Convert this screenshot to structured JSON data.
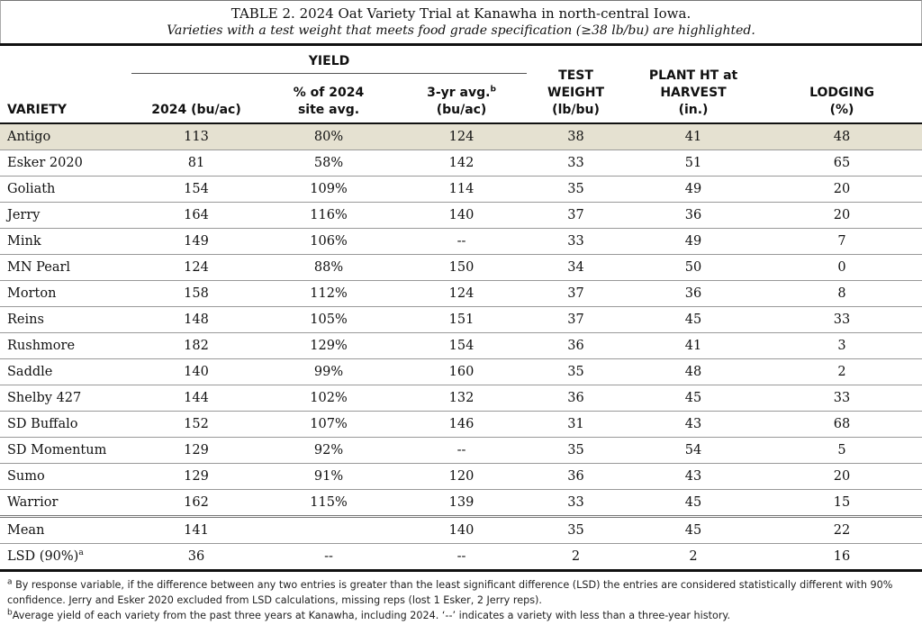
{
  "title": "TABLE 2. 2024 Oat Variety Trial at Kanawha in north-central Iowa.",
  "subtitle": "Varieties with a test weight that meets food grade specification (≥38 lb/bu) are highlighted.",
  "headers": {
    "variety": "VARIETY",
    "yield_group": "YIELD",
    "yield_2024": "2024 (bu/ac)",
    "pct_line1": "% of 2024",
    "pct_line2": "site avg.",
    "avg3_line1": "3-yr avg.",
    "avg3_sup": "b",
    "avg3_line2": "(bu/ac)",
    "tw_line1": "TEST",
    "tw_line2": "WEIGHT",
    "tw_line3": "(lb/bu)",
    "ph_line1": "PLANT HT at",
    "ph_line2": "HARVEST",
    "ph_line3": "(in.)",
    "lodging_line1": "LODGING",
    "lodging_line2": "(%)"
  },
  "rows": [
    {
      "variety": "Antigo",
      "yield": "113",
      "pct": "80%",
      "avg3": "124",
      "tw": "38",
      "ph": "41",
      "lodging": "48",
      "highlight": true
    },
    {
      "variety": "Esker 2020",
      "yield": "81",
      "pct": "58%",
      "avg3": "142",
      "tw": "33",
      "ph": "51",
      "lodging": "65"
    },
    {
      "variety": "Goliath",
      "yield": "154",
      "pct": "109%",
      "avg3": "114",
      "tw": "35",
      "ph": "49",
      "lodging": "20"
    },
    {
      "variety": "Jerry",
      "yield": "164",
      "pct": "116%",
      "avg3": "140",
      "tw": "37",
      "ph": "36",
      "lodging": "20"
    },
    {
      "variety": "Mink",
      "yield": "149",
      "pct": "106%",
      "avg3": "--",
      "tw": "33",
      "ph": "49",
      "lodging": "7"
    },
    {
      "variety": "MN Pearl",
      "yield": "124",
      "pct": "88%",
      "avg3": "150",
      "tw": "34",
      "ph": "50",
      "lodging": "0"
    },
    {
      "variety": "Morton",
      "yield": "158",
      "pct": "112%",
      "avg3": "124",
      "tw": "37",
      "ph": "36",
      "lodging": "8"
    },
    {
      "variety": "Reins",
      "yield": "148",
      "pct": "105%",
      "avg3": "151",
      "tw": "37",
      "ph": "45",
      "lodging": "33"
    },
    {
      "variety": "Rushmore",
      "yield": "182",
      "pct": "129%",
      "avg3": "154",
      "tw": "36",
      "ph": "41",
      "lodging": "3"
    },
    {
      "variety": "Saddle",
      "yield": "140",
      "pct": "99%",
      "avg3": "160",
      "tw": "35",
      "ph": "48",
      "lodging": "2"
    },
    {
      "variety": "Shelby 427",
      "yield": "144",
      "pct": "102%",
      "avg3": "132",
      "tw": "36",
      "ph": "45",
      "lodging": "33"
    },
    {
      "variety": "SD Buffalo",
      "yield": "152",
      "pct": "107%",
      "avg3": "146",
      "tw": "31",
      "ph": "43",
      "lodging": "68"
    },
    {
      "variety": "SD Momentum",
      "yield": "129",
      "pct": "92%",
      "avg3": "--",
      "tw": "35",
      "ph": "54",
      "lodging": "5"
    },
    {
      "variety": "Sumo",
      "yield": "129",
      "pct": "91%",
      "avg3": "120",
      "tw": "36",
      "ph": "43",
      "lodging": "20"
    },
    {
      "variety": "Warrior",
      "yield": "162",
      "pct": "115%",
      "avg3": "139",
      "tw": "33",
      "ph": "45",
      "lodging": "15"
    }
  ],
  "summary": {
    "mean": {
      "label": "Mean",
      "yield": "141",
      "pct": "",
      "avg3": "140",
      "tw": "35",
      "ph": "45",
      "lodging": "22"
    },
    "lsd": {
      "label": "LSD (90%)",
      "sup": "a",
      "yield": "36",
      "pct": "--",
      "avg3": "--",
      "tw": "2",
      "ph": "2",
      "lodging": "16"
    }
  },
  "notes": {
    "a_sup": "a",
    "a_text": "By response variable, if the difference between any two entries is greater than the least significant difference (LSD) the entries are considered statistically different with 90% confidence. Jerry and Esker 2020 excluded from LSD calculations, missing reps (lost 1 Esker, 2 Jerry reps).",
    "b_sup": "b",
    "b_text": "Average yield of each variety from the past three years at Kanawha, including 2024. ‘--’ indicates a variety with less than a three-year history."
  },
  "colors": {
    "highlight": "#e5e1d1"
  }
}
